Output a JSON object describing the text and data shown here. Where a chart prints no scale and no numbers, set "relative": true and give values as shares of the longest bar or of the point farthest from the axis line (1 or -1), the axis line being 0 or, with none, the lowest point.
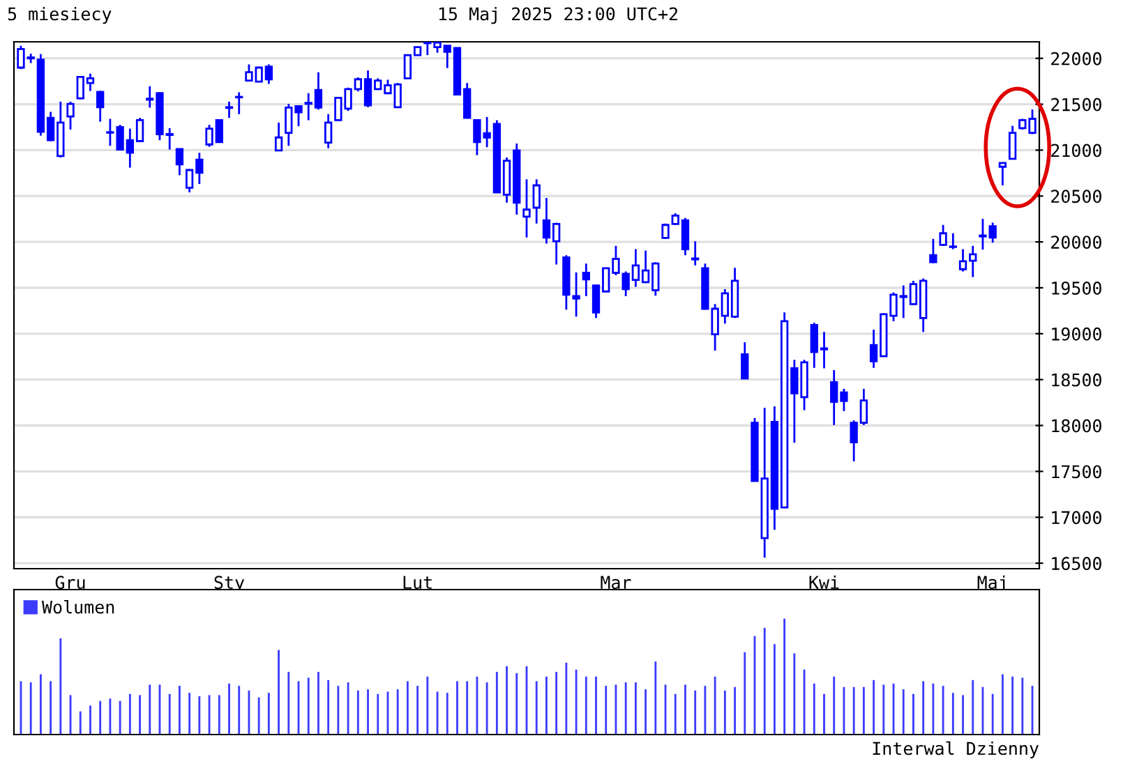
{
  "chart_data": [
    {
      "type": "candlestick",
      "title": "5 miesiecy",
      "subtitle": "15 Maj 2025 23:00 UTC+2",
      "categories": [
        null,
        null,
        null,
        null,
        null,
        "Gru",
        null,
        null,
        null,
        null,
        null,
        null,
        null,
        null,
        null,
        null,
        null,
        null,
        null,
        null,
        null,
        "Sty",
        null,
        null,
        null,
        null,
        null,
        null,
        null,
        null,
        null,
        null,
        null,
        null,
        null,
        null,
        null,
        null,
        null,
        null,
        "Lut",
        null,
        null,
        null,
        null,
        null,
        null,
        null,
        null,
        null,
        null,
        null,
        null,
        null,
        null,
        null,
        null,
        null,
        null,
        null,
        "Mar",
        null,
        null,
        null,
        null,
        null,
        null,
        null,
        null,
        null,
        null,
        null,
        null,
        null,
        null,
        null,
        null,
        null,
        null,
        null,
        null,
        "Kwi",
        null,
        null,
        null,
        null,
        null,
        null,
        null,
        null,
        null,
        null,
        null,
        null,
        null,
        null,
        null,
        null,
        "Maj",
        null,
        null,
        null,
        null
      ],
      "color": "#0000ff",
      "ohlc": [
        [
          21899,
          22137,
          21883,
          22101
        ],
        [
          22000,
          22051,
          21949,
          22010
        ],
        [
          21985,
          22046,
          21158,
          21199
        ],
        [
          21351,
          21417,
          21098,
          21108
        ],
        [
          20935,
          21528,
          20920,
          21300
        ],
        [
          21366,
          21528,
          21224,
          21503
        ],
        [
          21564,
          21797,
          21554,
          21797
        ],
        [
          21731,
          21833,
          21645,
          21782
        ],
        [
          21635,
          21645,
          21310,
          21468
        ],
        [
          21195,
          21341,
          21047,
          21190
        ],
        [
          21250,
          21275,
          20996,
          21006
        ],
        [
          21108,
          21234,
          20809,
          20971
        ],
        [
          21098,
          21351,
          21087,
          21326
        ],
        [
          21550,
          21696,
          21463,
          21560
        ],
        [
          21620,
          21630,
          21108,
          21174
        ],
        [
          21175,
          21240,
          21006,
          21165
        ],
        [
          21011,
          21011,
          20727,
          20844
        ],
        [
          20591,
          20793,
          20540,
          20783
        ],
        [
          20895,
          20971,
          20631,
          20753
        ],
        [
          21062,
          21275,
          21037,
          21234
        ],
        [
          21326,
          21330,
          21080,
          21087
        ],
        [
          21460,
          21528,
          21351,
          21468
        ],
        [
          21575,
          21630,
          21392,
          21580
        ],
        [
          21757,
          21934,
          21757,
          21848
        ],
        [
          21747,
          21909,
          21740,
          21899
        ],
        [
          21909,
          21934,
          21721,
          21772
        ],
        [
          20996,
          21300,
          20996,
          21138
        ],
        [
          21189,
          21503,
          21047,
          21463
        ],
        [
          21478,
          21478,
          21260,
          21412
        ],
        [
          21505,
          21620,
          21326,
          21515
        ],
        [
          21655,
          21848,
          21442,
          21463
        ],
        [
          21082,
          21392,
          21021,
          21300
        ],
        [
          21326,
          21575,
          21320,
          21569
        ],
        [
          21452,
          21681,
          21427,
          21665
        ],
        [
          21665,
          21792,
          21640,
          21772
        ],
        [
          21772,
          21868,
          21468,
          21488
        ],
        [
          21665,
          21782,
          21655,
          21757
        ],
        [
          21620,
          21767,
          21615,
          21706
        ],
        [
          21468,
          21731,
          21463,
          21716
        ],
        [
          21782,
          22040,
          21775,
          22035
        ],
        [
          22035,
          22127,
          22030,
          22122
        ],
        [
          22165,
          22188,
          22035,
          22175
        ],
        [
          22122,
          22223,
          22061,
          22172
        ],
        [
          22137,
          22137,
          21894,
          22071
        ],
        [
          22112,
          22112,
          21600,
          21605
        ],
        [
          21665,
          21731,
          21346,
          21351
        ],
        [
          21326,
          21330,
          20945,
          21087
        ],
        [
          21184,
          21361,
          21032,
          21138
        ],
        [
          21285,
          21326,
          20535,
          20540
        ],
        [
          20514,
          20920,
          20428,
          20885
        ],
        [
          20996,
          21072,
          20297,
          20428
        ],
        [
          20276,
          20682,
          20048,
          20352
        ],
        [
          20373,
          20682,
          20200,
          20616
        ],
        [
          20236,
          20479,
          19982,
          20048
        ],
        [
          20007,
          20210,
          19754,
          20195
        ],
        [
          19830,
          19855,
          19262,
          19424
        ],
        [
          19409,
          19668,
          19186,
          19384
        ],
        [
          19663,
          19764,
          19409,
          19592
        ],
        [
          19526,
          19530,
          19171,
          19232
        ],
        [
          19460,
          19718,
          19455,
          19713
        ],
        [
          19663,
          19957,
          19637,
          19815
        ],
        [
          19653,
          19678,
          19409,
          19485
        ],
        [
          19587,
          19921,
          19511,
          19744
        ],
        [
          19561,
          19906,
          19551,
          19688
        ],
        [
          19475,
          19779,
          19414,
          19764
        ],
        [
          20043,
          20200,
          20033,
          20185
        ],
        [
          20195,
          20312,
          20185,
          20286
        ],
        [
          20236,
          20261,
          19855,
          19921
        ],
        [
          19820,
          20007,
          19744,
          19810
        ],
        [
          19713,
          19764,
          19262,
          19272
        ],
        [
          18994,
          19323,
          18816,
          19272
        ],
        [
          19196,
          19485,
          19110,
          19440
        ],
        [
          19186,
          19718,
          19171,
          19576
        ],
        [
          18775,
          18907,
          18512,
          18512
        ],
        [
          18030,
          18081,
          17396,
          17396
        ],
        [
          16773,
          18192,
          16560,
          17422
        ],
        [
          18040,
          18208,
          16864,
          17092
        ],
        [
          17107,
          19232,
          17100,
          19136
        ],
        [
          18623,
          18715,
          17812,
          18350
        ],
        [
          18309,
          18715,
          18167,
          18689
        ],
        [
          19095,
          19120,
          18628,
          18801
        ],
        [
          18840,
          19019,
          18623,
          18830
        ],
        [
          18471,
          18603,
          18005,
          18258
        ],
        [
          18360,
          18400,
          18157,
          18268
        ],
        [
          18030,
          18056,
          17609,
          17817
        ],
        [
          18030,
          18400,
          18005,
          18273
        ],
        [
          18877,
          19044,
          18628,
          18700
        ],
        [
          18755,
          19222,
          18755,
          19212
        ],
        [
          19196,
          19450,
          19136,
          19424
        ],
        [
          19400,
          19526,
          19171,
          19410
        ],
        [
          19323,
          19576,
          19313,
          19541
        ],
        [
          19171,
          19602,
          19019,
          19576
        ],
        [
          19855,
          20033,
          19769,
          19779
        ],
        [
          19967,
          20185,
          19957,
          20094
        ],
        [
          19950,
          20094,
          19921,
          19945
        ],
        [
          19703,
          19921,
          19678,
          19790
        ],
        [
          19795,
          19957,
          19617,
          19865
        ],
        [
          20060,
          20251,
          19916,
          20070
        ],
        [
          20170,
          20210,
          19992,
          20048
        ],
        [
          20819,
          20865,
          20616,
          20859
        ],
        [
          20905,
          21265,
          20900,
          21189
        ],
        [
          21240,
          21341,
          21224,
          21326
        ],
        [
          21189,
          21442,
          21174,
          21341
        ]
      ],
      "ylim": [
        16440,
        22180
      ],
      "yticks": [
        16500,
        17000,
        17500,
        18000,
        18500,
        19000,
        19500,
        20000,
        20500,
        21000,
        21500,
        22000
      ],
      "grid": "y"
    },
    {
      "type": "bar",
      "relative": true,
      "legend": "top left",
      "annotations": [
        "Interwal Dzienny"
      ],
      "categories": [
        null,
        null,
        null,
        null,
        null,
        null,
        null,
        null,
        null,
        null,
        null,
        null,
        null,
        null,
        null,
        null,
        null,
        null,
        null,
        null,
        null,
        null,
        null,
        null,
        null,
        null,
        null,
        null,
        null,
        null,
        null,
        null,
        null,
        null,
        null,
        null,
        null,
        null,
        null,
        null,
        null,
        null,
        null,
        null,
        null,
        null,
        null,
        null,
        null,
        null,
        null,
        null,
        null,
        null,
        null,
        null,
        null,
        null,
        null,
        null,
        null,
        null,
        null,
        null,
        null,
        null,
        null,
        null,
        null,
        null,
        null,
        null,
        null,
        null,
        null,
        null,
        null,
        null,
        null,
        null,
        null,
        null,
        null,
        null,
        null,
        null,
        null,
        null,
        null,
        null,
        null,
        null,
        null,
        null,
        null,
        null,
        null,
        null,
        null,
        null,
        null,
        null,
        null
      ],
      "series": [
        {
          "name": "Wolumen",
          "color": "#3c3cff",
          "values": [
            0.46,
            0.45,
            0.52,
            0.46,
            0.83,
            0.34,
            0.2,
            0.25,
            0.29,
            0.31,
            0.29,
            0.35,
            0.34,
            0.43,
            0.43,
            0.35,
            0.42,
            0.36,
            0.33,
            0.34,
            0.34,
            0.44,
            0.42,
            0.38,
            0.32,
            0.36,
            0.73,
            0.54,
            0.46,
            0.49,
            0.54,
            0.47,
            0.42,
            0.45,
            0.38,
            0.39,
            0.35,
            0.37,
            0.39,
            0.46,
            0.42,
            0.5,
            0.37,
            0.36,
            0.46,
            0.46,
            0.5,
            0.45,
            0.54,
            0.59,
            0.53,
            0.59,
            0.46,
            0.5,
            0.54,
            0.62,
            0.56,
            0.5,
            0.5,
            0.42,
            0.43,
            0.45,
            0.45,
            0.39,
            0.63,
            0.43,
            0.35,
            0.43,
            0.38,
            0.42,
            0.5,
            0.38,
            0.41,
            0.71,
            0.85,
            0.92,
            0.78,
            1,
            0.7,
            0.56,
            0.44,
            0.35,
            0.5,
            0.41,
            0.41,
            0.41,
            0.47,
            0.43,
            0.44,
            0.39,
            0.35,
            0.46,
            0.44,
            0.42,
            0.36,
            0.34,
            0.47,
            0.41,
            0.35,
            0.52,
            0.5,
            0.49,
            0.42
          ]
        }
      ]
    }
  ]
}
